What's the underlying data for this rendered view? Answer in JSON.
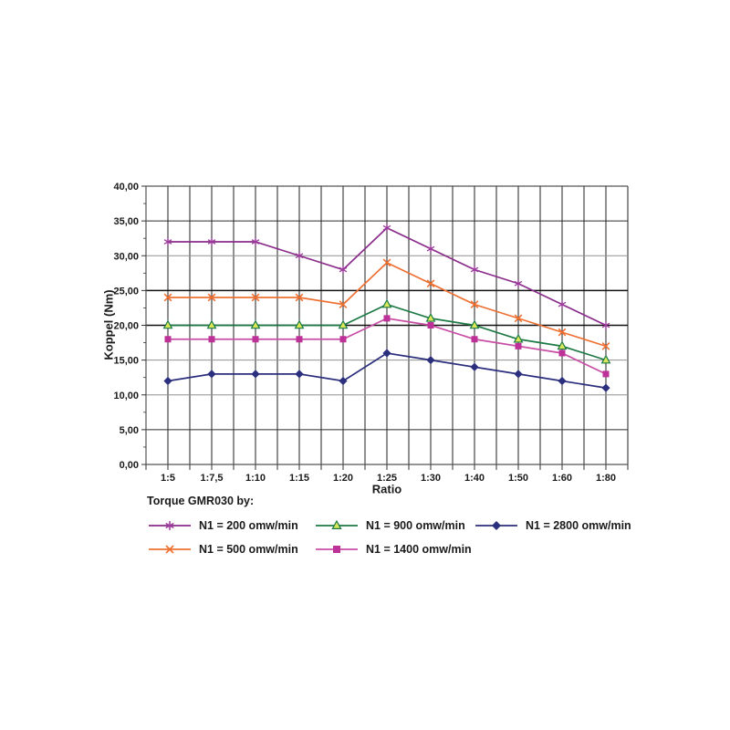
{
  "chart_data": {
    "type": "line",
    "legend_title": "Torque GMR030 by:",
    "xlabel": "Ratio",
    "ylabel": "Koppel (Nm)",
    "categories": [
      "1:5",
      "1:7,5",
      "1:10",
      "1:15",
      "1:20",
      "1:25",
      "1:30",
      "1:40",
      "1:50",
      "1:60",
      "1:80"
    ],
    "y_ticks": [
      "0,00",
      "5,00",
      "10,00",
      "15,00",
      "20,00",
      "25,00",
      "30,00",
      "35,00",
      "40,00"
    ],
    "ylim": [
      0,
      40
    ],
    "y_major_step": 5,
    "grid": true,
    "legend_position": "below",
    "series": [
      {
        "name": "N1 = 200 omw/min",
        "marker": "star",
        "color": "#8A2C8A",
        "marker_color": "#9B3A9B",
        "values": [
          32,
          32,
          32,
          30,
          28,
          34,
          31,
          28,
          26,
          23,
          20
        ]
      },
      {
        "name": "N1 = 500 omw/min",
        "marker": "x",
        "color": "#EE7033",
        "marker_color": "#EE7033",
        "values": [
          24,
          24,
          24,
          24,
          23,
          29,
          26,
          23,
          21,
          19,
          17
        ]
      },
      {
        "name": "N1 = 900 omw/min",
        "marker": "triangle",
        "color": "#1E7A45",
        "marker_color": "#1E7A45",
        "marker_fill": "#D9E75A",
        "values": [
          20,
          20,
          20,
          20,
          20,
          23,
          21,
          20,
          18,
          17,
          15
        ]
      },
      {
        "name": "N1 = 1400 omw/min",
        "marker": "square",
        "color": "#C84FA5",
        "marker_color": "#BE3199",
        "values": [
          18,
          18,
          18,
          18,
          18,
          21,
          20,
          18,
          17,
          16,
          13
        ]
      },
      {
        "name": "N1 = 2800 omw/min",
        "marker": "diamond",
        "color": "#2B2F7E",
        "marker_color": "#2B2F7E",
        "values": [
          12,
          13,
          13,
          13,
          12,
          16,
          15,
          14,
          13,
          12,
          11
        ]
      }
    ]
  }
}
